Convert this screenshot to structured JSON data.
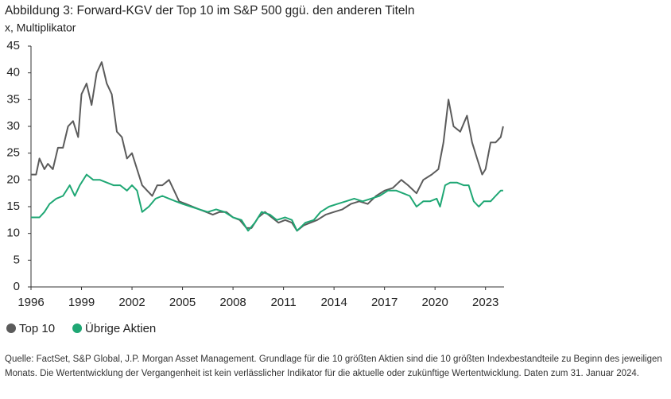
{
  "chart_data": {
    "type": "line",
    "title": "Abbildung 3: Forward-KGV der Top 10 im S&P 500 ggü. den anderen Titeln",
    "subtitle": "x, Multiplikator",
    "source": "Quelle: FactSet, S&P Global, J.P. Morgan Asset Management. Grundlage für die 10 größten Aktien sind die 10 größten Indexbestandteile zu Beginn des jeweiligen Monats. Die Wertentwicklung der Vergangenheit ist kein verlässlicher Indikator für die aktuelle oder zukünftige Wertentwicklung. Daten zum 31. Januar 2024.",
    "xlim": [
      1996,
      2024.1
    ],
    "xticks": [
      1996,
      1999,
      2002,
      2005,
      2008,
      2011,
      2014,
      2017,
      2020,
      2023
    ],
    "ylim": [
      0,
      45
    ],
    "yticks": [
      0,
      5,
      10,
      15,
      20,
      25,
      30,
      35,
      40,
      45
    ],
    "series": [
      {
        "name": "Top 10",
        "color": "#5b5b5b",
        "x": [
          1996.0,
          1996.3,
          1996.5,
          1996.8,
          1997.0,
          1997.3,
          1997.6,
          1997.9,
          1998.2,
          1998.5,
          1998.8,
          1999.0,
          1999.3,
          1999.6,
          1999.9,
          2000.2,
          2000.5,
          2000.8,
          2001.1,
          2001.4,
          2001.7,
          2002.0,
          2002.3,
          2002.6,
          2002.9,
          2003.2,
          2003.5,
          2003.8,
          2004.2,
          2004.5,
          2004.8,
          2005.2,
          2005.6,
          2006.0,
          2006.4,
          2006.8,
          2007.2,
          2007.6,
          2008.0,
          2008.4,
          2008.8,
          2009.1,
          2009.5,
          2009.9,
          2010.3,
          2010.7,
          2011.1,
          2011.5,
          2011.8,
          2012.2,
          2012.6,
          2013.0,
          2013.5,
          2014.0,
          2014.5,
          2015.0,
          2015.5,
          2016.0,
          2016.5,
          2017.0,
          2017.5,
          2018.0,
          2018.4,
          2018.9,
          2019.3,
          2019.8,
          2020.2,
          2020.5,
          2020.8,
          2021.1,
          2021.5,
          2021.9,
          2022.2,
          2022.5,
          2022.8,
          2023.0,
          2023.3,
          2023.6,
          2023.9,
          2024.05
        ],
        "values": [
          21,
          21,
          24,
          22,
          23,
          22,
          26,
          26,
          30,
          31,
          28,
          36,
          38,
          34,
          40,
          42,
          38,
          36,
          29,
          28,
          24,
          25,
          22,
          19,
          18,
          17,
          19,
          19,
          20,
          18,
          16,
          15.5,
          15,
          14.5,
          14,
          13.5,
          14,
          14,
          13,
          12.5,
          11,
          11,
          13,
          14,
          13,
          12,
          12.5,
          12,
          10.5,
          11.5,
          12,
          12.5,
          13.5,
          14,
          14.5,
          15.5,
          16,
          15.5,
          17,
          18,
          18.5,
          20,
          19,
          17.5,
          20,
          21,
          22,
          27,
          35,
          30,
          29,
          32,
          27,
          24,
          21,
          22,
          27,
          27,
          28,
          30
        ]
      },
      {
        "name": "Übrige Aktien",
        "color": "#1fa774",
        "x": [
          1996.0,
          1996.5,
          1996.8,
          1997.1,
          1997.5,
          1997.9,
          1998.3,
          1998.6,
          1998.9,
          1999.3,
          1999.7,
          2000.1,
          2000.5,
          2000.9,
          2001.3,
          2001.7,
          2002.0,
          2002.3,
          2002.6,
          2003.0,
          2003.4,
          2003.8,
          2004.2,
          2004.6,
          2005.0,
          2005.5,
          2006.0,
          2006.5,
          2007.0,
          2007.5,
          2008.0,
          2008.5,
          2008.9,
          2009.3,
          2009.7,
          2010.2,
          2010.6,
          2011.1,
          2011.5,
          2011.8,
          2012.3,
          2012.8,
          2013.2,
          2013.7,
          2014.2,
          2014.7,
          2015.2,
          2015.7,
          2016.2,
          2016.7,
          2017.2,
          2017.7,
          2018.1,
          2018.5,
          2018.9,
          2019.3,
          2019.7,
          2020.1,
          2020.3,
          2020.6,
          2020.9,
          2021.3,
          2021.7,
          2022.0,
          2022.3,
          2022.6,
          2022.9,
          2023.3,
          2023.6,
          2023.9,
          2024.05
        ],
        "values": [
          13,
          13,
          14,
          15.5,
          16.5,
          17,
          19,
          17,
          19,
          21,
          20,
          20,
          19.5,
          19,
          19,
          18,
          19,
          18,
          14,
          15,
          16.5,
          17,
          16.5,
          16,
          15.5,
          15,
          14.5,
          14,
          14.5,
          14,
          13,
          12.5,
          10.5,
          12,
          14,
          13.5,
          12.5,
          13,
          12.5,
          10.5,
          12,
          12.5,
          14,
          15,
          15.5,
          16,
          16.5,
          16,
          16.5,
          17,
          18,
          18,
          17.5,
          17,
          15,
          16,
          16,
          16.5,
          15,
          19,
          19.5,
          19.5,
          19,
          19,
          16,
          15,
          16,
          16,
          17,
          18,
          18
        ]
      }
    ]
  }
}
